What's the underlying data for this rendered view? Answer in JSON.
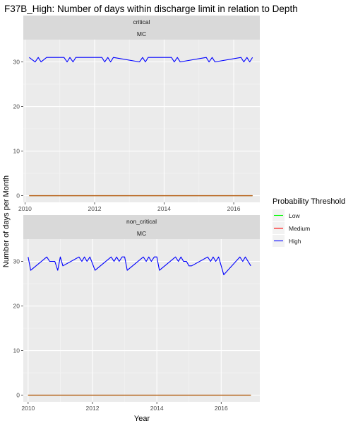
{
  "chart_data": {
    "type": "line",
    "title": "F37B_High: Number of days within discharge limit in relation to Depth",
    "xlabel": "Year",
    "ylabel": "Number of days per Month",
    "legend": {
      "title": "Probability Threshold",
      "position": "right",
      "entries": [
        {
          "name": "Low",
          "color": "#00ff00"
        },
        {
          "name": "Medium",
          "color": "#ff0000"
        },
        {
          "name": "High",
          "color": "#0000ff"
        }
      ]
    },
    "grid": true,
    "panels": [
      {
        "strip_top": "critical",
        "strip_bottom": "MC",
        "xlim": [
          2009.95,
          2016.75
        ],
        "ylim": [
          -1.5,
          35
        ],
        "xticks": [
          2010,
          2012,
          2014,
          2016
        ],
        "xtick_labels": [
          "2010",
          "2012",
          "2014",
          "2016"
        ],
        "yticks": [
          0,
          10,
          20,
          30
        ],
        "ytick_labels": [
          "0",
          "10",
          "20",
          "30"
        ],
        "series": [
          {
            "name": "Low",
            "color": "#00ff00",
            "x": [
              2010.12,
              2016.54
            ],
            "y": [
              0,
              0
            ]
          },
          {
            "name": "Medium",
            "color": "#ff0000",
            "x": [
              2010.12,
              2016.54
            ],
            "y": [
              0,
              0
            ]
          },
          {
            "name": "High",
            "color": "#0000ff",
            "x": [
              2010.12,
              2010.29,
              2010.38,
              2010.46,
              2010.62,
              2011.12,
              2011.21,
              2011.29,
              2011.38,
              2011.46,
              2011.54,
              2012.21,
              2012.29,
              2012.38,
              2012.46,
              2012.54,
              2013.29,
              2013.38,
              2013.46,
              2013.54,
              2014.21,
              2014.29,
              2014.38,
              2014.46,
              2015.21,
              2015.29,
              2015.38,
              2015.46,
              2016.21,
              2016.29,
              2016.38,
              2016.46,
              2016.54
            ],
            "y": [
              31,
              30,
              31,
              30,
              31,
              31,
              30,
              31,
              30,
              31,
              31,
              31,
              30,
              31,
              30,
              31,
              30,
              31,
              30,
              31,
              31,
              30,
              31,
              30,
              31,
              30,
              31,
              30,
              31,
              30,
              31,
              30,
              31
            ]
          }
        ]
      },
      {
        "strip_top": "non_critical",
        "strip_bottom": "MC",
        "xlim": [
          2009.85,
          2017.2
        ],
        "ylim": [
          -1.5,
          35
        ],
        "xticks": [
          2010,
          2012,
          2014,
          2016
        ],
        "xtick_labels": [
          "2010",
          "2012",
          "2014",
          "2016"
        ],
        "yticks": [
          0,
          10,
          20,
          30
        ],
        "ytick_labels": [
          "0",
          "10",
          "20",
          "30"
        ],
        "series": [
          {
            "name": "Low",
            "color": "#00ff00",
            "x": [
              2010.0,
              2016.92
            ],
            "y": [
              0,
              0
            ]
          },
          {
            "name": "Medium",
            "color": "#ff0000",
            "x": [
              2010.0,
              2016.92
            ],
            "y": [
              0,
              0
            ]
          },
          {
            "name": "High",
            "color": "#0000ff",
            "x": [
              2010.0,
              2010.08,
              2010.58,
              2010.67,
              2010.83,
              2010.92,
              2011.0,
              2011.08,
              2011.58,
              2011.67,
              2011.75,
              2011.83,
              2011.92,
              2012.08,
              2012.58,
              2012.67,
              2012.75,
              2012.83,
              2012.92,
              2013.0,
              2013.08,
              2013.58,
              2013.67,
              2013.75,
              2013.83,
              2013.92,
              2014.0,
              2014.08,
              2014.58,
              2014.67,
              2014.75,
              2014.83,
              2014.92,
              2015.0,
              2015.08,
              2015.58,
              2015.67,
              2015.75,
              2015.83,
              2015.92,
              2016.08,
              2016.58,
              2016.67,
              2016.75,
              2016.92
            ],
            "y": [
              31,
              28,
              31,
              30,
              30,
              28,
              31,
              29,
              31,
              30,
              31,
              30,
              31,
              28,
              31,
              30,
              31,
              30,
              31,
              31,
              28,
              31,
              30,
              31,
              30,
              31,
              31,
              28,
              31,
              30,
              31,
              30,
              30,
              29,
              29,
              31,
              30,
              31,
              30,
              31,
              27,
              31,
              30,
              31,
              29
            ]
          }
        ]
      }
    ]
  }
}
